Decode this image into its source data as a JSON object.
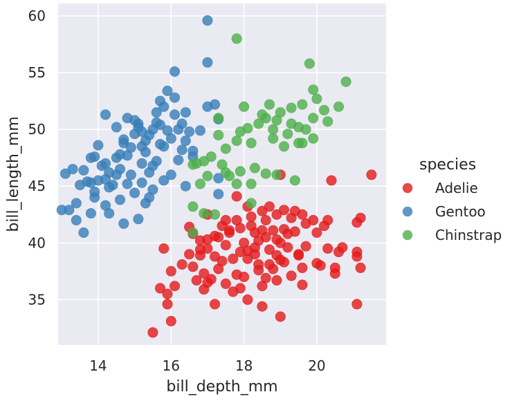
{
  "chart_data": {
    "type": "scatter",
    "xlabel": "bill_depth_mm",
    "ylabel": "bill_length_mm",
    "xlim": [
      12.9,
      21.9
    ],
    "ylim": [
      31.0,
      61.1
    ],
    "xticks": [
      14,
      16,
      18,
      20
    ],
    "yticks": [
      35,
      40,
      45,
      50,
      55,
      60
    ],
    "grid": true,
    "legend": {
      "title": "species",
      "placement": "right"
    },
    "colors": {
      "background": "#eaeaf2",
      "grid": "#ffffff",
      "Adelie": "#e41a1c",
      "Gentoo": "#377eb8",
      "Chinstrap": "#4daf4a"
    },
    "series": [
      {
        "name": "Adelie",
        "color": "#e41a1c",
        "points": [
          [
            21.5,
            46.0
          ],
          [
            21.1,
            41.8
          ],
          [
            21.2,
            42.2
          ],
          [
            21.1,
            39.2
          ],
          [
            21.1,
            38.8
          ],
          [
            21.2,
            37.8
          ],
          [
            21.1,
            34.6
          ],
          [
            20.7,
            39.6
          ],
          [
            20.6,
            39.2
          ],
          [
            20.4,
            45.5
          ],
          [
            20.3,
            42.0
          ],
          [
            20.3,
            39.5
          ],
          [
            20.2,
            41.5
          ],
          [
            20.0,
            40.9
          ],
          [
            20.1,
            38.0
          ],
          [
            20.5,
            37.8
          ],
          [
            20.5,
            37.3
          ],
          [
            20.0,
            38.2
          ],
          [
            19.9,
            42.0
          ],
          [
            19.7,
            41.7
          ],
          [
            19.6,
            42.5
          ],
          [
            19.5,
            38.9
          ],
          [
            19.6,
            37.8
          ],
          [
            19.5,
            39.0
          ],
          [
            19.4,
            41.0
          ],
          [
            19.3,
            42.2
          ],
          [
            19.2,
            39.6
          ],
          [
            19.1,
            41.2
          ],
          [
            19.0,
            40.0
          ],
          [
            19.0,
            38.5
          ],
          [
            18.9,
            42.5
          ],
          [
            18.8,
            41.1
          ],
          [
            18.7,
            39.4
          ],
          [
            18.6,
            40.5
          ],
          [
            18.5,
            41.1
          ],
          [
            18.4,
            40.2
          ],
          [
            18.3,
            39.0
          ],
          [
            18.2,
            41.5
          ],
          [
            18.1,
            38.6
          ],
          [
            18.0,
            40.0
          ],
          [
            17.9,
            39.2
          ],
          [
            17.8,
            42.0
          ],
          [
            17.7,
            38.6
          ],
          [
            17.6,
            40.9
          ],
          [
            17.5,
            39.8
          ],
          [
            17.4,
            41.5
          ],
          [
            17.3,
            37.7
          ],
          [
            17.2,
            40.6
          ],
          [
            17.1,
            36.8
          ],
          [
            17.0,
            39.5
          ],
          [
            16.9,
            37.3
          ],
          [
            16.8,
            38.9
          ],
          [
            16.7,
            36.7
          ],
          [
            16.6,
            40.8
          ],
          [
            16.5,
            39.0
          ],
          [
            16.3,
            38.1
          ],
          [
            16.1,
            36.2
          ],
          [
            16.0,
            37.5
          ],
          [
            15.9,
            35.5
          ],
          [
            15.8,
            39.5
          ],
          [
            15.7,
            36.0
          ],
          [
            16.0,
            33.1
          ],
          [
            15.5,
            32.1
          ],
          [
            15.9,
            34.6
          ],
          [
            16.5,
            41.4
          ],
          [
            17.0,
            42.5
          ],
          [
            17.5,
            42.0
          ],
          [
            17.8,
            44.1
          ],
          [
            18.1,
            43.2
          ],
          [
            18.5,
            42.8
          ],
          [
            18.7,
            43.2
          ],
          [
            19.1,
            42.9
          ],
          [
            19.4,
            42.8
          ],
          [
            19.0,
            46.0
          ],
          [
            18.6,
            42.0
          ],
          [
            18.2,
            42.3
          ],
          [
            17.9,
            41.3
          ],
          [
            17.6,
            41.1
          ],
          [
            17.3,
            40.5
          ],
          [
            17.0,
            40.3
          ],
          [
            16.8,
            40.2
          ],
          [
            18.4,
            38.1
          ],
          [
            18.0,
            37.0
          ],
          [
            18.5,
            36.2
          ],
          [
            18.9,
            36.7
          ],
          [
            19.3,
            37.1
          ],
          [
            19.6,
            36.3
          ],
          [
            19.0,
            33.5
          ],
          [
            18.5,
            34.4
          ],
          [
            17.7,
            35.7
          ],
          [
            17.2,
            34.6
          ],
          [
            16.9,
            35.9
          ],
          [
            18.1,
            35.0
          ],
          [
            18.3,
            39.6
          ],
          [
            18.9,
            40.3
          ],
          [
            19.2,
            40.8
          ],
          [
            18.7,
            38.1
          ],
          [
            18.1,
            39.3
          ],
          [
            17.4,
            38.4
          ],
          [
            17.8,
            37.2
          ],
          [
            18.6,
            36.9
          ],
          [
            18.9,
            38.9
          ],
          [
            19.1,
            38.3
          ],
          [
            18.3,
            40.9
          ],
          [
            17.5,
            36.4
          ],
          [
            17.2,
            38.8
          ],
          [
            16.8,
            39.4
          ],
          [
            18.8,
            37.7
          ],
          [
            19.7,
            39.7
          ],
          [
            17.9,
            36.0
          ],
          [
            18.4,
            37.6
          ],
          [
            16.6,
            37.9
          ],
          [
            17.0,
            36.5
          ]
        ]
      },
      {
        "name": "Gentoo",
        "color": "#377eb8",
        "points": [
          [
            17.0,
            59.6
          ],
          [
            17.0,
            55.9
          ],
          [
            16.1,
            55.1
          ],
          [
            15.9,
            53.4
          ],
          [
            15.7,
            52.5
          ],
          [
            15.8,
            52.0
          ],
          [
            15.6,
            51.5
          ],
          [
            15.7,
            50.4
          ],
          [
            15.5,
            50.0
          ],
          [
            15.4,
            49.5
          ],
          [
            15.3,
            49.0
          ],
          [
            15.2,
            48.5
          ],
          [
            15.1,
            50.5
          ],
          [
            15.0,
            50.8
          ],
          [
            14.9,
            48.4
          ],
          [
            14.8,
            47.7
          ],
          [
            14.7,
            49.1
          ],
          [
            14.6,
            46.5
          ],
          [
            14.5,
            47.5
          ],
          [
            14.4,
            45.1
          ],
          [
            14.3,
            46.2
          ],
          [
            14.2,
            47.0
          ],
          [
            14.1,
            46.8
          ],
          [
            14.0,
            45.5
          ],
          [
            13.9,
            44.5
          ],
          [
            13.8,
            45.3
          ],
          [
            13.7,
            45.4
          ],
          [
            13.6,
            46.4
          ],
          [
            13.5,
            45.1
          ],
          [
            13.4,
            43.5
          ],
          [
            13.3,
            46.5
          ],
          [
            13.2,
            42.9
          ],
          [
            13.1,
            46.1
          ],
          [
            13.0,
            42.9
          ],
          [
            13.6,
            40.9
          ],
          [
            13.4,
            42.0
          ],
          [
            13.8,
            42.6
          ],
          [
            14.2,
            43.3
          ],
          [
            14.6,
            43.8
          ],
          [
            15.0,
            44.4
          ],
          [
            15.3,
            43.5
          ],
          [
            15.1,
            42.1
          ],
          [
            14.7,
            41.7
          ],
          [
            14.3,
            42.6
          ],
          [
            13.9,
            44.0
          ],
          [
            16.4,
            51.5
          ],
          [
            16.2,
            50.0
          ],
          [
            16.0,
            49.2
          ],
          [
            15.8,
            48.5
          ],
          [
            16.3,
            48.2
          ],
          [
            16.6,
            48.1
          ],
          [
            16.5,
            49.8
          ],
          [
            16.3,
            50.5
          ],
          [
            16.1,
            51.3
          ],
          [
            15.9,
            49.9
          ],
          [
            15.6,
            47.2
          ],
          [
            15.4,
            46.2
          ],
          [
            15.2,
            45.3
          ],
          [
            14.8,
            45.2
          ],
          [
            14.5,
            46.0
          ],
          [
            14.3,
            44.9
          ],
          [
            14.0,
            48.6
          ],
          [
            13.8,
            47.5
          ],
          [
            14.5,
            50.2
          ],
          [
            14.2,
            51.3
          ],
          [
            14.8,
            51.0
          ],
          [
            15.0,
            49.6
          ],
          [
            15.3,
            48.0
          ],
          [
            15.5,
            46.8
          ],
          [
            16.0,
            46.0
          ],
          [
            16.4,
            45.0
          ],
          [
            17.3,
            45.7
          ],
          [
            17.3,
            44.3
          ],
          [
            17.0,
            52.0
          ],
          [
            17.2,
            52.2
          ],
          [
            17.3,
            50.9
          ],
          [
            16.8,
            49.9
          ],
          [
            16.4,
            49.0
          ],
          [
            14.6,
            47.8
          ],
          [
            14.9,
            46.0
          ],
          [
            15.2,
            47.0
          ],
          [
            15.5,
            44.7
          ],
          [
            14.2,
            45.6
          ],
          [
            13.9,
            47.6
          ],
          [
            14.7,
            48.8
          ],
          [
            15.1,
            50.2
          ],
          [
            15.6,
            50.6
          ],
          [
            15.8,
            45.5
          ],
          [
            16.2,
            47.3
          ],
          [
            16.6,
            47.6
          ],
          [
            16.1,
            52.8
          ],
          [
            15.7,
            48.7
          ],
          [
            15.2,
            49.8
          ],
          [
            15.4,
            44.0
          ]
        ]
      },
      {
        "name": "Chinstrap",
        "color": "#4daf4a",
        "points": [
          [
            17.8,
            58.0
          ],
          [
            19.8,
            55.8
          ],
          [
            20.8,
            54.2
          ],
          [
            19.9,
            53.5
          ],
          [
            20.0,
            52.7
          ],
          [
            19.6,
            52.2
          ],
          [
            18.7,
            52.2
          ],
          [
            18.0,
            52.0
          ],
          [
            19.3,
            51.9
          ],
          [
            20.6,
            52.0
          ],
          [
            20.2,
            51.7
          ],
          [
            19.0,
            51.5
          ],
          [
            18.5,
            51.3
          ],
          [
            19.9,
            51.0
          ],
          [
            17.3,
            51.0
          ],
          [
            18.4,
            50.5
          ],
          [
            18.9,
            50.8
          ],
          [
            19.5,
            50.2
          ],
          [
            18.1,
            50.1
          ],
          [
            19.7,
            50.0
          ],
          [
            17.9,
            49.8
          ],
          [
            19.2,
            49.6
          ],
          [
            17.3,
            49.5
          ],
          [
            18.8,
            49.2
          ],
          [
            19.9,
            49.2
          ],
          [
            19.5,
            48.8
          ],
          [
            19.6,
            48.8
          ],
          [
            18.2,
            48.8
          ],
          [
            17.5,
            48.3
          ],
          [
            16.7,
            47.0
          ],
          [
            16.6,
            46.9
          ],
          [
            16.9,
            47.2
          ],
          [
            17.4,
            46.9
          ],
          [
            18.3,
            46.6
          ],
          [
            17.9,
            46.3
          ],
          [
            17.5,
            46.2
          ],
          [
            18.9,
            46.0
          ],
          [
            18.6,
            46.1
          ],
          [
            17.0,
            45.9
          ],
          [
            17.6,
            45.9
          ],
          [
            16.8,
            45.2
          ],
          [
            18.2,
            45.2
          ],
          [
            17.8,
            45.2
          ],
          [
            19.4,
            45.5
          ],
          [
            16.6,
            43.2
          ],
          [
            17.2,
            42.5
          ],
          [
            16.9,
            42.6
          ],
          [
            18.2,
            43.5
          ],
          [
            16.6,
            40.9
          ],
          [
            17.8,
            49.0
          ],
          [
            18.8,
            50.0
          ],
          [
            20.3,
            50.7
          ],
          [
            19.1,
            48.5
          ],
          [
            17.1,
            47.6
          ],
          [
            18.6,
            51.0
          ],
          [
            19.3,
            50.5
          ]
        ]
      }
    ]
  }
}
